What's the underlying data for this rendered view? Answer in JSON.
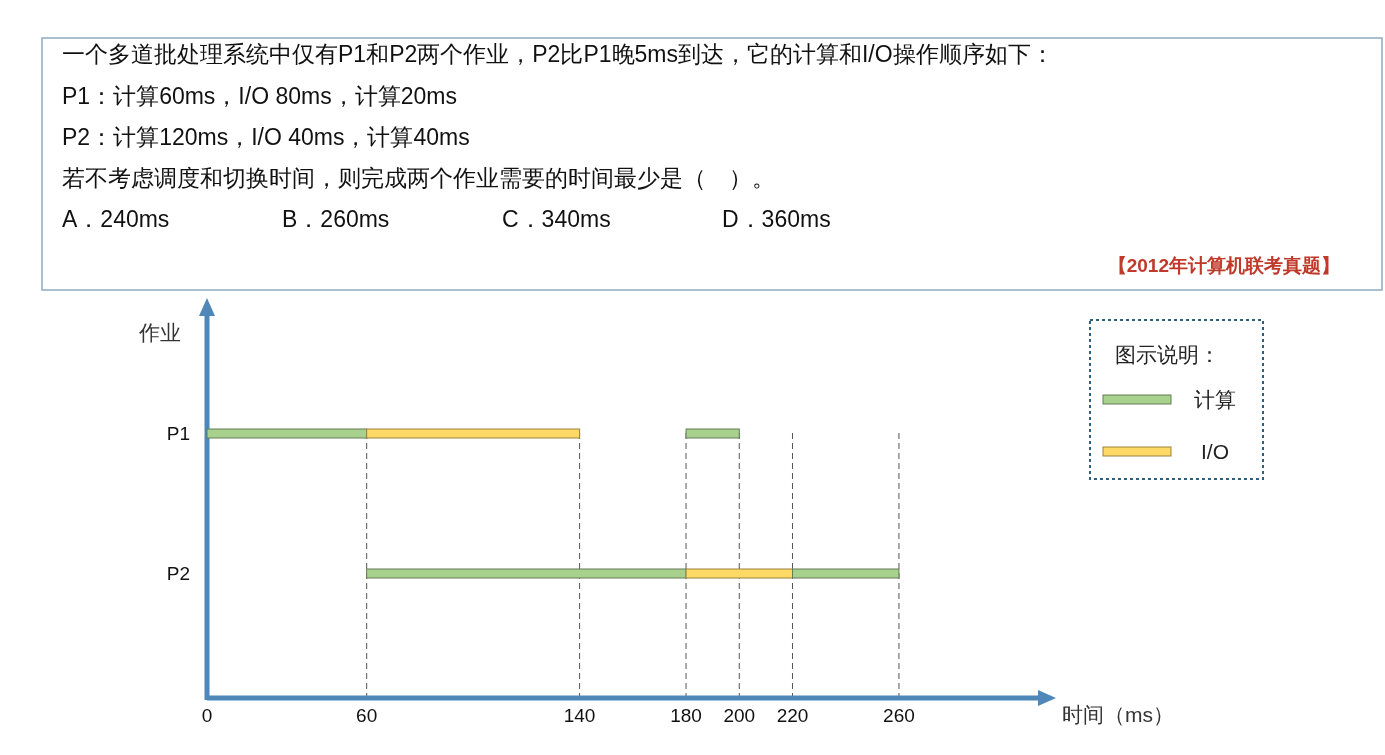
{
  "chart_data": {
    "type": "bar",
    "orientation": "horizontal",
    "title": "一个多道批处理系统中仅有P1和P2两个作业，P2比P1晚5ms到达，它的计算和I/O操作顺序如下：",
    "annotations": [
      "P1：计算60ms，I/O 80ms，计算20ms",
      "P2：计算120ms，I/O 40ms，计算40ms",
      "若不考虑调度和切换时间，则完成两个作业需要的时间最少是（　）。",
      "A．240ms",
      "B．260ms",
      "C．340ms",
      "D．360ms",
      "【2012年计算机联考真题】"
    ],
    "categories": [
      "P1",
      "P2"
    ],
    "series": [
      {
        "name": "计算",
        "color": "#a9d18e",
        "base": [
          0,
          60
        ],
        "values": [
          60,
          120
        ]
      },
      {
        "name": "I/O",
        "color": "#ffd966",
        "base": [
          60,
          180
        ],
        "values": [
          80,
          40
        ]
      },
      {
        "color": "#a9d18e",
        "base": [
          180,
          220
        ],
        "values": [
          20,
          40
        ]
      }
    ],
    "xlim": [
      0,
      313
    ],
    "xticks": [
      0,
      60,
      140,
      180,
      200,
      220,
      260
    ],
    "xlabel": "时间（ms）",
    "ylabel": "作业",
    "legend_title": "图示说明：",
    "legend": "top right",
    "ref_lines": [
      {
        "axis": "x",
        "value": 60,
        "line_style": "dashed",
        "color": "#555555"
      },
      {
        "axis": "x",
        "value": 140,
        "line_style": "dashed",
        "color": "#555555"
      },
      {
        "axis": "x",
        "value": 180,
        "line_style": "dashed",
        "color": "#555555"
      },
      {
        "axis": "x",
        "value": 200,
        "line_style": "dashed",
        "color": "#555555"
      },
      {
        "axis": "x",
        "value": 220,
        "line_style": "dashed",
        "color": "#555555"
      },
      {
        "axis": "x",
        "value": 260,
        "line_style": "dashed",
        "color": "#555555"
      }
    ]
  }
}
